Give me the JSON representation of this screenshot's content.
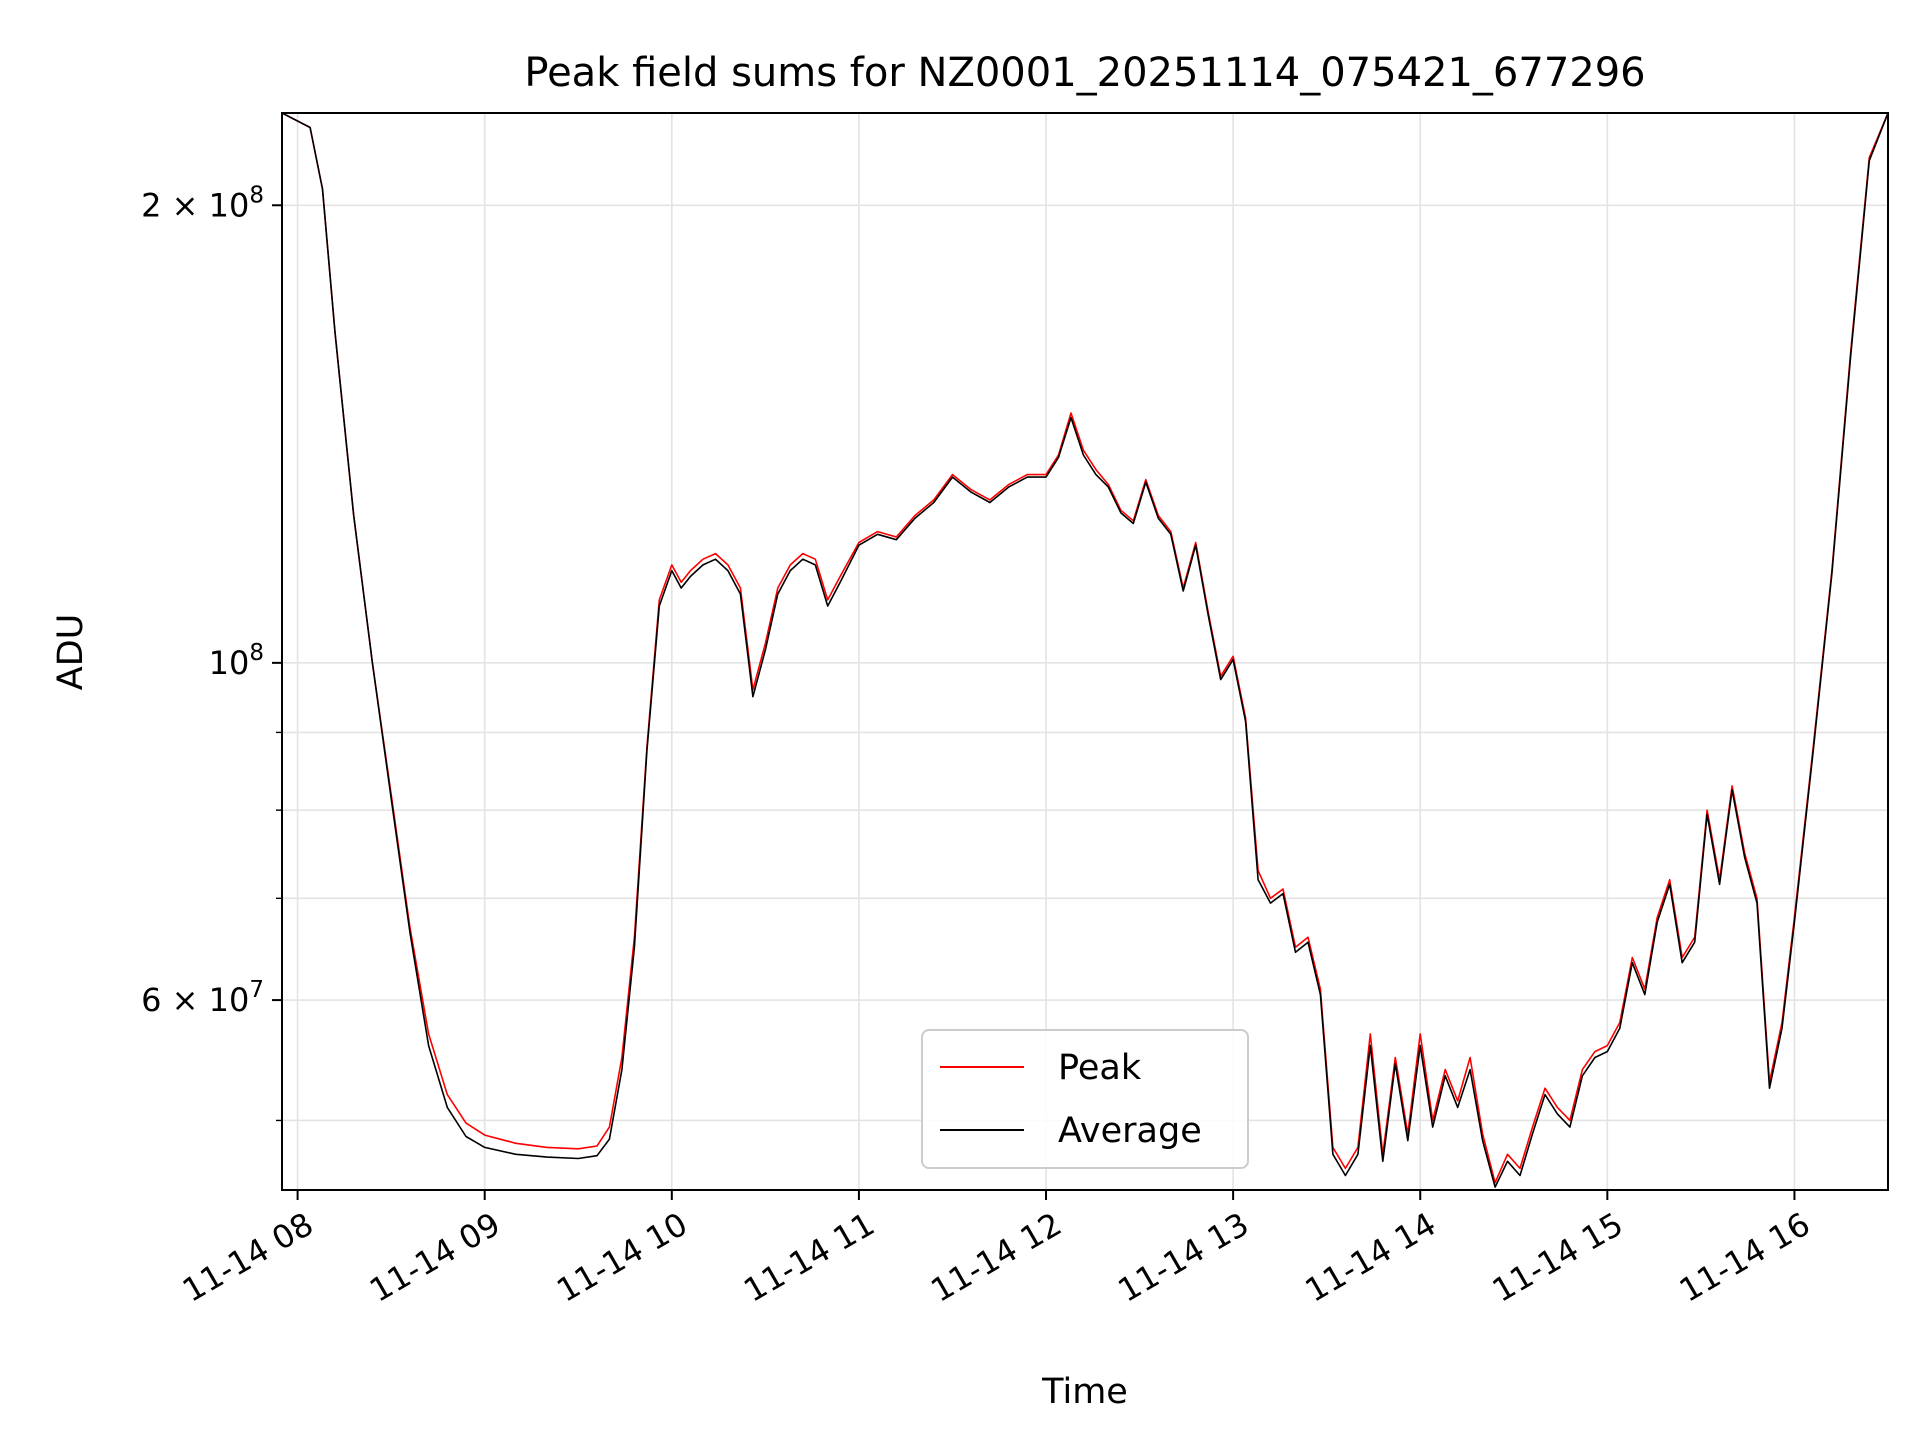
{
  "chart_data": {
    "type": "line",
    "title": "Peak field sums for NZ0001_20251114_075421_677296",
    "xlabel": "Time",
    "ylabel": "ADU",
    "y_scale": "log",
    "grid": true,
    "legend_placement": "lower-center",
    "x_range": [
      "11-14 07:55",
      "11-14 16:30"
    ],
    "y_range": [
      45000000,
      230000000
    ],
    "x_ticks": [
      {
        "value": "2025-11-14 08:00",
        "label": "11-14 08"
      },
      {
        "value": "2025-11-14 09:00",
        "label": "11-14 09"
      },
      {
        "value": "2025-11-14 10:00",
        "label": "11-14 10"
      },
      {
        "value": "2025-11-14 11:00",
        "label": "11-14 11"
      },
      {
        "value": "2025-11-14 12:00",
        "label": "11-14 12"
      },
      {
        "value": "2025-11-14 13:00",
        "label": "11-14 13"
      },
      {
        "value": "2025-11-14 14:00",
        "label": "11-14 14"
      },
      {
        "value": "2025-11-14 15:00",
        "label": "11-14 15"
      },
      {
        "value": "2025-11-14 16:00",
        "label": "11-14 16"
      }
    ],
    "y_ticks": [
      {
        "value": 200000000,
        "mantissa": "2",
        "exponent": "8"
      },
      {
        "value": 100000000,
        "mantissa": "",
        "exponent": "8"
      },
      {
        "value": 60000000,
        "mantissa": "6",
        "exponent": "7"
      }
    ],
    "y_minor_ticks": [
      50000000,
      70000000,
      80000000,
      90000000
    ],
    "series": [
      {
        "name": "Peak",
        "color": "#ff0000",
        "x": [
          "11-14 07:55",
          "11-14 08:04",
          "11-14 08:08",
          "11-14 08:12",
          "11-14 08:18",
          "11-14 08:24",
          "11-14 08:30",
          "11-14 08:36",
          "11-14 08:42",
          "11-14 08:48",
          "11-14 08:54",
          "11-14 09:00",
          "11-14 09:10",
          "11-14 09:20",
          "11-14 09:30",
          "11-14 09:36",
          "11-14 09:40",
          "11-14 09:44",
          "11-14 09:48",
          "11-14 09:52",
          "11-14 09:56",
          "11-14 10:00",
          "11-14 10:03",
          "11-14 10:06",
          "11-14 10:10",
          "11-14 10:14",
          "11-14 10:18",
          "11-14 10:22",
          "11-14 10:26",
          "11-14 10:30",
          "11-14 10:34",
          "11-14 10:38",
          "11-14 10:42",
          "11-14 10:46",
          "11-14 10:50",
          "11-14 10:54",
          "11-14 11:00",
          "11-14 11:06",
          "11-14 11:12",
          "11-14 11:18",
          "11-14 11:24",
          "11-14 11:30",
          "11-14 11:36",
          "11-14 11:42",
          "11-14 11:48",
          "11-14 11:54",
          "11-14 12:00",
          "11-14 12:04",
          "11-14 12:08",
          "11-14 12:12",
          "11-14 12:16",
          "11-14 12:20",
          "11-14 12:24",
          "11-14 12:28",
          "11-14 12:32",
          "11-14 12:36",
          "11-14 12:40",
          "11-14 12:44",
          "11-14 12:48",
          "11-14 12:52",
          "11-14 12:56",
          "11-14 13:00",
          "11-14 13:04",
          "11-14 13:08",
          "11-14 13:12",
          "11-14 13:16",
          "11-14 13:20",
          "11-14 13:24",
          "11-14 13:28",
          "11-14 13:32",
          "11-14 13:36",
          "11-14 13:40",
          "11-14 13:44",
          "11-14 13:48",
          "11-14 13:52",
          "11-14 13:56",
          "11-14 14:00",
          "11-14 14:04",
          "11-14 14:08",
          "11-14 14:12",
          "11-14 14:16",
          "11-14 14:20",
          "11-14 14:24",
          "11-14 14:28",
          "11-14 14:32",
          "11-14 14:36",
          "11-14 14:40",
          "11-14 14:44",
          "11-14 14:48",
          "11-14 14:52",
          "11-14 14:56",
          "11-14 15:00",
          "11-14 15:04",
          "11-14 15:08",
          "11-14 15:12",
          "11-14 15:16",
          "11-14 15:20",
          "11-14 15:24",
          "11-14 15:28",
          "11-14 15:32",
          "11-14 15:36",
          "11-14 15:40",
          "11-14 15:44",
          "11-14 15:48",
          "11-14 15:52",
          "11-14 15:56",
          "11-14 16:00",
          "11-14 16:06",
          "11-14 16:12",
          "11-14 16:18",
          "11-14 16:24",
          "11-14 16:30"
        ],
        "y": [
          230000000,
          225000000,
          205000000,
          165000000,
          125000000,
          100000000,
          82000000,
          67000000,
          57000000,
          52000000,
          49800000,
          48900000,
          48300000,
          48000000,
          47900000,
          48100000,
          49500000,
          55000000,
          66000000,
          88000000,
          110000000,
          116000000,
          113000000,
          115000000,
          117000000,
          118000000,
          116000000,
          112000000,
          96000000,
          103000000,
          112000000,
          116000000,
          118000000,
          117000000,
          110000000,
          114000000,
          120000000,
          122000000,
          121000000,
          125000000,
          128000000,
          133000000,
          130000000,
          128000000,
          131000000,
          133000000,
          133000000,
          137000000,
          146000000,
          138000000,
          134000000,
          131000000,
          126000000,
          124000000,
          132000000,
          125000000,
          122000000,
          112000000,
          120000000,
          108000000,
          98000000,
          101000000,
          92000000,
          73000000,
          70000000,
          71000000,
          65000000,
          66000000,
          61000000,
          48000000,
          46500000,
          48000000,
          57000000,
          47500000,
          55000000,
          49000000,
          57000000,
          50000000,
          54000000,
          51500000,
          55000000,
          49000000,
          45500000,
          47500000,
          46500000,
          49500000,
          52500000,
          51000000,
          50000000,
          54000000,
          55500000,
          56000000,
          58000000,
          64000000,
          61000000,
          68000000,
          72000000,
          64000000,
          66000000,
          80000000,
          72000000,
          83000000,
          75000000,
          70000000,
          53000000,
          58000000,
          68000000,
          88000000,
          115000000,
          160000000,
          215000000,
          230000000
        ]
      },
      {
        "name": "Average",
        "color": "#000000",
        "x": [
          "11-14 07:55",
          "11-14 08:04",
          "11-14 08:08",
          "11-14 08:12",
          "11-14 08:18",
          "11-14 08:24",
          "11-14 08:30",
          "11-14 08:36",
          "11-14 08:42",
          "11-14 08:48",
          "11-14 08:54",
          "11-14 09:00",
          "11-14 09:10",
          "11-14 09:20",
          "11-14 09:30",
          "11-14 09:36",
          "11-14 09:40",
          "11-14 09:44",
          "11-14 09:48",
          "11-14 09:52",
          "11-14 09:56",
          "11-14 10:00",
          "11-14 10:03",
          "11-14 10:06",
          "11-14 10:10",
          "11-14 10:14",
          "11-14 10:18",
          "11-14 10:22",
          "11-14 10:26",
          "11-14 10:30",
          "11-14 10:34",
          "11-14 10:38",
          "11-14 10:42",
          "11-14 10:46",
          "11-14 10:50",
          "11-14 10:54",
          "11-14 11:00",
          "11-14 11:06",
          "11-14 11:12",
          "11-14 11:18",
          "11-14 11:24",
          "11-14 11:30",
          "11-14 11:36",
          "11-14 11:42",
          "11-14 11:48",
          "11-14 11:54",
          "11-14 12:00",
          "11-14 12:04",
          "11-14 12:08",
          "11-14 12:12",
          "11-14 12:16",
          "11-14 12:20",
          "11-14 12:24",
          "11-14 12:28",
          "11-14 12:32",
          "11-14 12:36",
          "11-14 12:40",
          "11-14 12:44",
          "11-14 12:48",
          "11-14 12:52",
          "11-14 12:56",
          "11-14 13:00",
          "11-14 13:04",
          "11-14 13:08",
          "11-14 13:12",
          "11-14 13:16",
          "11-14 13:20",
          "11-14 13:24",
          "11-14 13:28",
          "11-14 13:32",
          "11-14 13:36",
          "11-14 13:40",
          "11-14 13:44",
          "11-14 13:48",
          "11-14 13:52",
          "11-14 13:56",
          "11-14 14:00",
          "11-14 14:04",
          "11-14 14:08",
          "11-14 14:12",
          "11-14 14:16",
          "11-14 14:20",
          "11-14 14:24",
          "11-14 14:28",
          "11-14 14:32",
          "11-14 14:36",
          "11-14 14:40",
          "11-14 14:44",
          "11-14 14:48",
          "11-14 14:52",
          "11-14 14:56",
          "11-14 15:00",
          "11-14 15:04",
          "11-14 15:08",
          "11-14 15:12",
          "11-14 15:16",
          "11-14 15:20",
          "11-14 15:24",
          "11-14 15:28",
          "11-14 15:32",
          "11-14 15:36",
          "11-14 15:40",
          "11-14 15:44",
          "11-14 15:48",
          "11-14 15:52",
          "11-14 15:56",
          "11-14 16:00",
          "11-14 16:06",
          "11-14 16:12",
          "11-14 16:18",
          "11-14 16:24",
          "11-14 16:30"
        ],
        "y": [
          230000000,
          225000000,
          205000000,
          165000000,
          125000000,
          100000000,
          81500000,
          66500000,
          56000000,
          51000000,
          48800000,
          48000000,
          47500000,
          47300000,
          47200000,
          47400000,
          48600000,
          54000000,
          65000000,
          87500000,
          109000000,
          115000000,
          112000000,
          114000000,
          116000000,
          117000000,
          115000000,
          111000000,
          95000000,
          102000000,
          111000000,
          115000000,
          117000000,
          116000000,
          109000000,
          113000000,
          119500000,
          121500000,
          120500000,
          124500000,
          127500000,
          132500000,
          129500000,
          127500000,
          130500000,
          132500000,
          132500000,
          136500000,
          145000000,
          137000000,
          133000000,
          130500000,
          125500000,
          123500000,
          131500000,
          124500000,
          121500000,
          111500000,
          119500000,
          107500000,
          97500000,
          100500000,
          91500000,
          72000000,
          69500000,
          70500000,
          64500000,
          65500000,
          60500000,
          47500000,
          46000000,
          47500000,
          56000000,
          47000000,
          54500000,
          48500000,
          56000000,
          49500000,
          53500000,
          51000000,
          54000000,
          48500000,
          45200000,
          47000000,
          46000000,
          49000000,
          52000000,
          50500000,
          49500000,
          53500000,
          55000000,
          55500000,
          57500000,
          63500000,
          60500000,
          67500000,
          71500000,
          63500000,
          65500000,
          79500000,
          71500000,
          82500000,
          74500000,
          69500000,
          52500000,
          57500000,
          67500000,
          87500000,
          114500000,
          159000000,
          214000000,
          230000000
        ]
      }
    ]
  }
}
